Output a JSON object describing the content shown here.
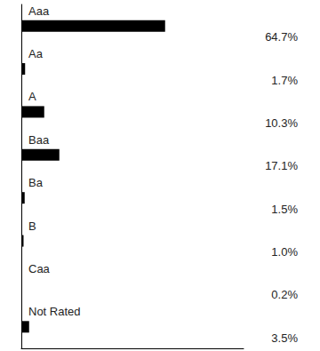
{
  "chart_data": {
    "type": "bar",
    "orientation": "horizontal",
    "categories": [
      "Aaa",
      "Aa",
      "A",
      "Baa",
      "Ba",
      "B",
      "Caa",
      "Not Rated"
    ],
    "values": [
      64.7,
      1.7,
      10.3,
      17.1,
      1.5,
      1.0,
      0.2,
      3.5
    ],
    "value_labels": [
      "64.7%",
      "1.7%",
      "10.3%",
      "17.1%",
      "1.5%",
      "1.0%",
      "0.2%",
      "3.5%"
    ],
    "color": "#000000",
    "xlim": [
      0,
      100
    ],
    "xticks": [],
    "grid": false,
    "tick_labels": false,
    "data_labels": true
  }
}
